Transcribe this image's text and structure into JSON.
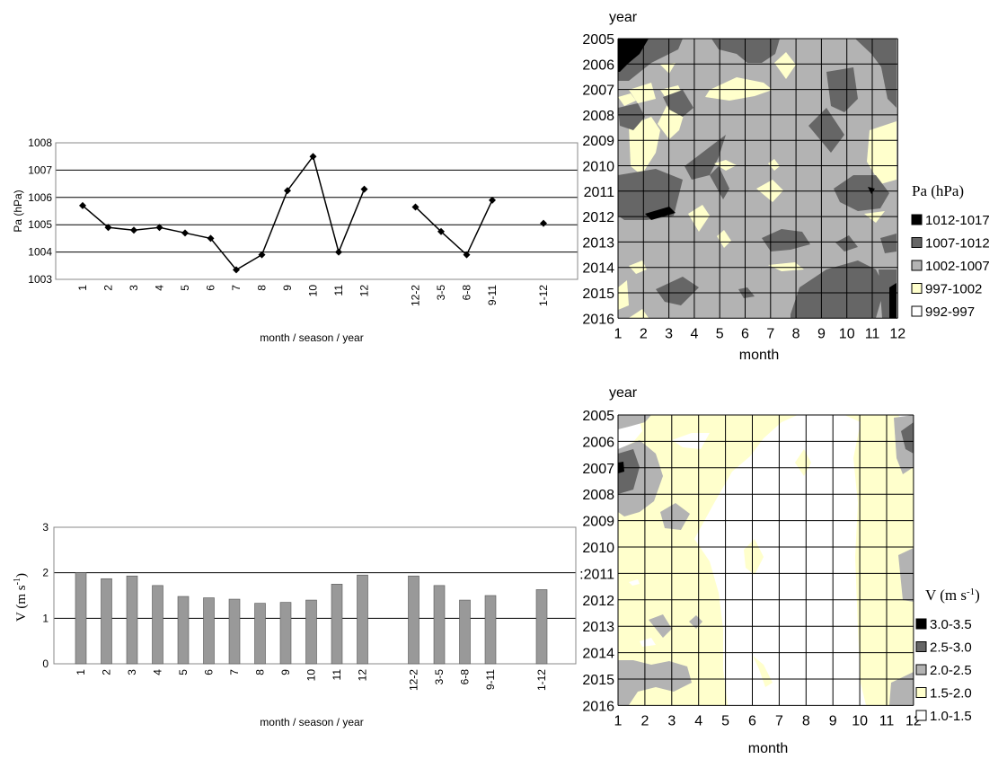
{
  "colors": {
    "line": "#000000",
    "bar": "#999999",
    "grid": "#000000",
    "contour_black": "#000000",
    "contour_dark": "#666666",
    "contour_mid": "#b3b3b3",
    "contour_light": "#ffffcc",
    "contour_white": "#ffffff"
  },
  "chart_data": [
    {
      "type": "line",
      "xlabel": "month  / season / year",
      "ylabel": "Pa (hPa)",
      "ylim": [
        1003,
        1008
      ],
      "yticks": [
        "1003",
        "1004",
        "1005",
        "1006",
        "1007",
        "1008"
      ],
      "categories": [
        "1",
        "2",
        "3",
        "4",
        "5",
        "6",
        "7",
        "8",
        "9",
        "10",
        "11",
        "12",
        "12-2",
        "3-5",
        "6-8",
        "9-11",
        "1-12"
      ],
      "values": [
        1005.7,
        1004.9,
        1004.8,
        1004.9,
        1004.7,
        1004.5,
        1003.35,
        1003.9,
        1006.25,
        1007.5,
        1004.0,
        1006.3,
        1005.65,
        1004.75,
        1003.9,
        1005.9,
        1005.05
      ],
      "grid": true
    },
    {
      "type": "heatmap",
      "xlabel": "month",
      "ylabel": "year",
      "x": [
        "1",
        "2",
        "3",
        "4",
        "5",
        "6",
        "7",
        "8",
        "9",
        "10",
        "11",
        "12"
      ],
      "y": [
        "2005",
        "2006",
        "2007",
        "2008",
        "2009",
        "2010",
        "2011",
        "2012",
        "2013",
        "2014",
        "2015",
        "2016"
      ],
      "legend_title": "Pa (hPa)",
      "legend": [
        "1012-1017",
        "1007-1012",
        "1002-1007",
        "997-1002",
        "992-997"
      ],
      "grid": true
    },
    {
      "type": "bar",
      "xlabel": "month  / season / year",
      "ylabel": "V (m s-1)",
      "ylim": [
        0,
        3
      ],
      "yticks": [
        "0",
        "1",
        "2",
        "3"
      ],
      "categories": [
        "1",
        "2",
        "3",
        "4",
        "5",
        "6",
        "7",
        "8",
        "9",
        "10",
        "11",
        "12",
        "12-2",
        "3-5",
        "6-8",
        "9-11",
        "1-12"
      ],
      "values": [
        2.0,
        1.87,
        1.93,
        1.72,
        1.48,
        1.45,
        1.42,
        1.33,
        1.35,
        1.4,
        1.75,
        1.95,
        1.93,
        1.72,
        1.4,
        1.5,
        1.63
      ],
      "grid": true
    },
    {
      "type": "heatmap",
      "xlabel": "month",
      "ylabel": "year",
      "x": [
        "1",
        "2",
        "3",
        "4",
        "5",
        "6",
        "7",
        "8",
        "9",
        "10",
        "11",
        "12"
      ],
      "y": [
        "2005",
        "2006",
        "2007",
        "2008",
        "2009",
        "2010",
        ":2011",
        "2012",
        "2013",
        "2014",
        "2015",
        "2016"
      ],
      "legend_title": "V (m s-1)",
      "legend": [
        "3.0-3.5",
        "2.5-3.0",
        "2.0-2.5",
        "1.5-2.0",
        "1.0-1.5"
      ],
      "grid": true
    }
  ]
}
